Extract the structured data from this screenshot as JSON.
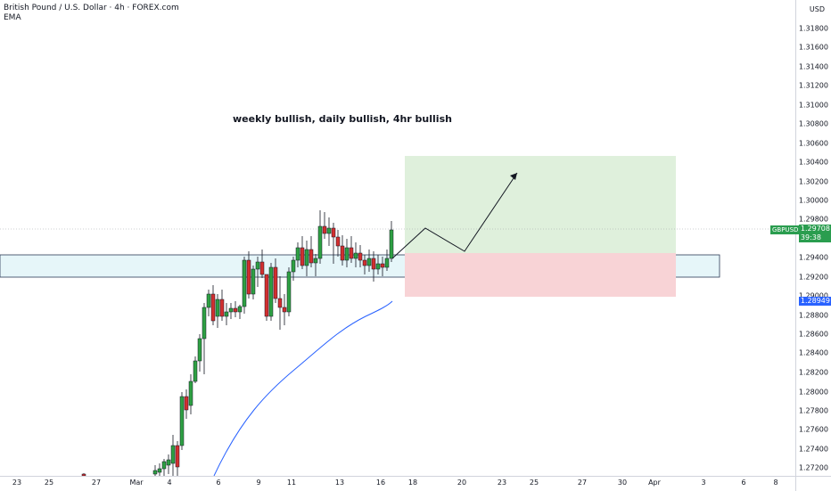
{
  "legend": {
    "symbol_line": "British Pound / U.S. Dollar · 4h · FOREX.com",
    "indicator": "EMA"
  },
  "annotation": "weekly bullish, daily bullish, 4hr bullish",
  "price_axis": {
    "currency": "USD",
    "ticks": [
      "1.31800",
      "1.31600",
      "1.31400",
      "1.31200",
      "1.31000",
      "1.30800",
      "1.30600",
      "1.30400",
      "1.30200",
      "1.30000",
      "1.29800",
      "1.29600",
      "1.29400",
      "1.29200",
      "1.29000",
      "1.28800",
      "1.28600",
      "1.28400",
      "1.28200",
      "1.28000",
      "1.27800",
      "1.27600",
      "1.27400",
      "1.27200"
    ]
  },
  "time_axis": {
    "ticks": [
      "23",
      "25",
      "27",
      "Mar",
      "4",
      "6",
      "9",
      "11",
      "13",
      "16",
      "18",
      "20",
      "23",
      "25",
      "27",
      "30",
      "Apr",
      "3",
      "6",
      "8"
    ]
  },
  "price_labels": {
    "symbol": "GBPUSD",
    "last_price": "1.29708",
    "countdown": "39:38",
    "ema_value": "1.28949",
    "last_color": "#2a9d4f",
    "ema_color": "#2962ff"
  },
  "colors": {
    "up": "#26a69a",
    "candle_up": "#2ea043",
    "down": "#ef5350",
    "candle_down": "#d32f2f",
    "zone_fill": "#e6f6f9",
    "zone_border": "#2b3a55",
    "target_fill": "#dff0dc",
    "stop_fill": "#f8d3d6",
    "ema": "#2962ff"
  }
}
